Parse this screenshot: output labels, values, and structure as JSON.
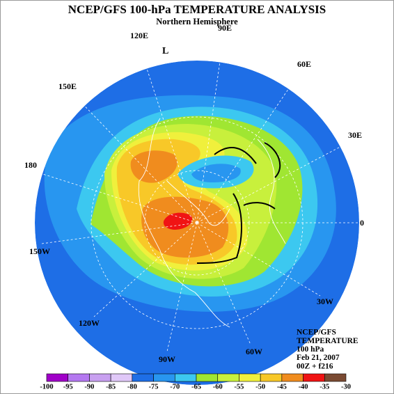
{
  "header": {
    "title": "NCEP/GFS 100-hPa TEMPERATURE ANALYSIS",
    "subtitle": "Northern Hemisphere"
  },
  "map": {
    "longitude_labels": [
      "90E",
      "120E",
      "60E",
      "150E",
      "30E",
      "180",
      "0",
      "150W",
      "30W",
      "120W",
      "60W",
      "90W"
    ],
    "pressure_label": "L"
  },
  "info": [
    "NCEP/GFS",
    "TEMPERATURE",
    "100 hPa",
    "Feb 21, 2007",
    "00Z + f216"
  ],
  "colorbar": {
    "levels": [
      -100,
      -95,
      -90,
      -85,
      -80,
      -75,
      -70,
      -65,
      -60,
      -55,
      -50,
      -45,
      -40,
      -35,
      -30
    ],
    "colors": [
      "#a000c8",
      "#b478f0",
      "#c8a0f0",
      "#e0c8f8",
      "#1e6ee6",
      "#2896f0",
      "#3cc8f0",
      "#a0e632",
      "#c8f03c",
      "#f0f03c",
      "#f8c828",
      "#f08c1e",
      "#f01414",
      "#7a4a32",
      "#8c8c8c"
    ]
  }
}
